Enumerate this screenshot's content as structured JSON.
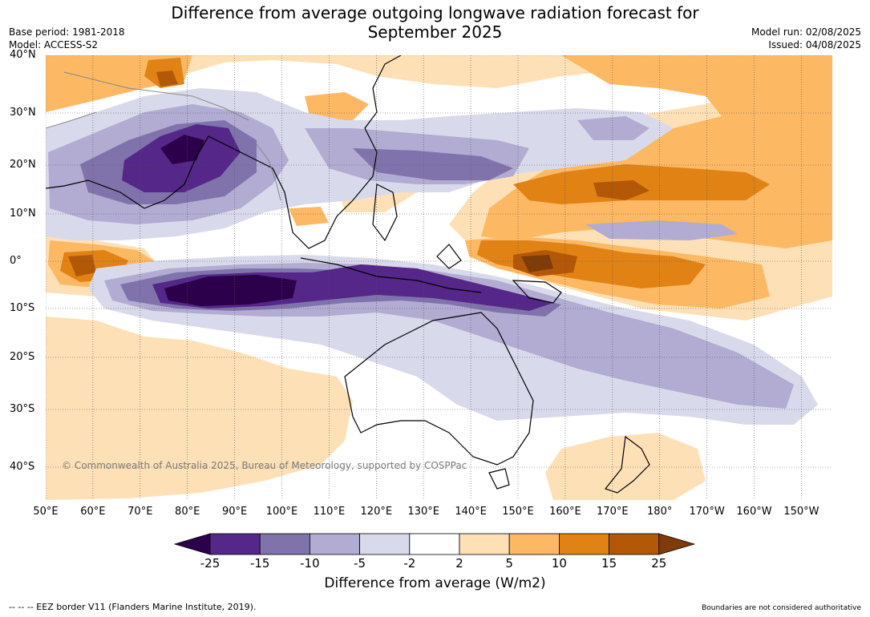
{
  "title_line1": "Difference from average outgoing longwave radiation forecast for",
  "title_line2": "September 2025",
  "base_period": "Base period: 1981-2018",
  "model": "Model: ACCESS-S2",
  "model_run": "Model run: 02/08/2025",
  "issued": "Issued: 04/08/2025",
  "copyright": "© Commonwealth of Australia 2025, Bureau of Meteorology, supported by COSPPac",
  "footer_left": "--  --  -- EEZ border V11 (Flanders Marine Institute, 2019).",
  "footer_right": "Boundaries are not considered authoritative",
  "lat_labels": [
    "40°N",
    "30°N",
    "20°N",
    "10°N",
    "0°",
    "10°S",
    "20°S",
    "30°S",
    "40°S"
  ],
  "lon_labels": [
    "50°E",
    "60°E",
    "70°E",
    "80°E",
    "90°E",
    "100°E",
    "110°E",
    "120°E",
    "130°E",
    "140°E",
    "150°E",
    "160°E",
    "170°E",
    "180°",
    "170°W",
    "160°W",
    "150°W"
  ],
  "colorbar": {
    "label": "Difference from average (W/m2)",
    "ticks": [
      "-25",
      "-15",
      "-10",
      "-5",
      "-2",
      "2",
      "5",
      "10",
      "15",
      "25"
    ],
    "colors": [
      "#2d004b",
      "#542788",
      "#8073ac",
      "#b2abd2",
      "#d8daeb",
      "#ffffff",
      "#fee0b6",
      "#fdb863",
      "#e08214",
      "#b35806",
      "#7f3b08"
    ]
  }
}
